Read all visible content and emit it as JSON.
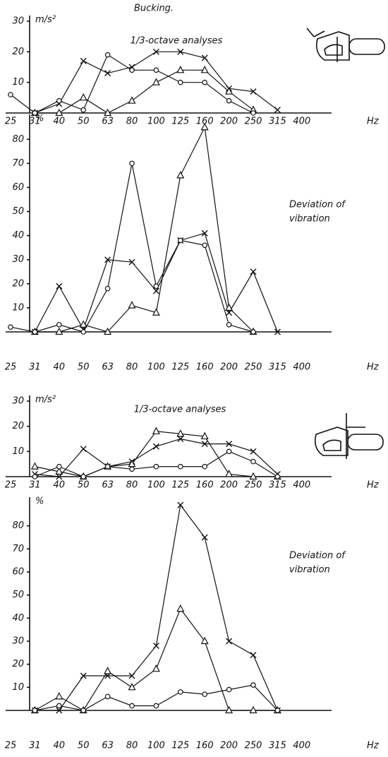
{
  "title": "Bucking.",
  "chart_data": [
    {
      "type": "line",
      "subtitle": "1/3-octave analyses",
      "y_label": "m/s²",
      "x_label": "Hz",
      "categories": [
        "25",
        "31",
        "40",
        "50",
        "63",
        "80",
        "100",
        "125",
        "160",
        "200",
        "250",
        "315",
        "400"
      ],
      "ylim": [
        0,
        30
      ],
      "yticks": [
        10,
        20,
        30
      ],
      "series": [
        {
          "marker": "x",
          "color": "#111",
          "values": [
            null,
            0,
            3,
            17,
            13,
            15,
            20,
            20,
            18,
            8,
            7,
            1,
            null
          ]
        },
        {
          "marker": "triangle",
          "color": "#111",
          "values": [
            null,
            0,
            0,
            5,
            0,
            4,
            10,
            14,
            14,
            7,
            1,
            null,
            null
          ]
        },
        {
          "marker": "circle",
          "color": "#111",
          "values": [
            6,
            0,
            4,
            1,
            19,
            14,
            14,
            10,
            10,
            4,
            0,
            null,
            null
          ]
        }
      ]
    },
    {
      "type": "line",
      "annotation": [
        "Deviation of",
        "vibration"
      ],
      "y_label": "%",
      "x_label": "Hz",
      "categories": [
        "25",
        "31",
        "40",
        "50",
        "63",
        "80",
        "100",
        "125",
        "160",
        "200",
        "250",
        "315",
        "400"
      ],
      "ylim": [
        0,
        88
      ],
      "yticks": [
        10,
        20,
        30,
        40,
        50,
        60,
        70,
        80
      ],
      "series": [
        {
          "marker": "x",
          "color": "#111",
          "values": [
            null,
            0,
            19,
            1,
            30,
            29,
            17,
            38,
            41,
            8,
            25,
            0,
            null
          ]
        },
        {
          "marker": "triangle",
          "color": "#111",
          "values": [
            null,
            0,
            0,
            3,
            0,
            11,
            8,
            65,
            85,
            10,
            0,
            null,
            null
          ]
        },
        {
          "marker": "circle",
          "color": "#111",
          "values": [
            2,
            0,
            3,
            0,
            18,
            70,
            19,
            38,
            36,
            3,
            0,
            null,
            null
          ]
        }
      ]
    },
    {
      "type": "line",
      "subtitle": "1/3-octave analyses",
      "y_label": "m/s²",
      "x_label": "Hz",
      "categories": [
        "25",
        "31",
        "40",
        "50",
        "63",
        "80",
        "100",
        "125",
        "160",
        "200",
        "250",
        "315",
        "400"
      ],
      "ylim": [
        0,
        30
      ],
      "yticks": [
        10,
        20,
        30
      ],
      "series": [
        {
          "marker": "x",
          "color": "#111",
          "values": [
            null,
            1,
            0,
            11,
            4,
            6,
            12,
            15,
            13,
            13,
            10,
            1,
            null
          ]
        },
        {
          "marker": "triangle",
          "color": "#111",
          "values": [
            null,
            4,
            2,
            0,
            4,
            5,
            18,
            17,
            16,
            1,
            0,
            0,
            null
          ]
        },
        {
          "marker": "circle",
          "color": "#111",
          "values": [
            null,
            0,
            4,
            0,
            4,
            3,
            4,
            4,
            4,
            10,
            6,
            0,
            null
          ]
        }
      ]
    },
    {
      "type": "line",
      "annotation": [
        "Deviation of",
        "vibration"
      ],
      "y_label": "%",
      "x_label": "Hz",
      "categories": [
        "25",
        "31",
        "40",
        "50",
        "63",
        "80",
        "100",
        "125",
        "160",
        "200",
        "250",
        "315",
        "400"
      ],
      "ylim": [
        0,
        90
      ],
      "yticks": [
        10,
        20,
        30,
        40,
        50,
        60,
        70,
        80
      ],
      "series": [
        {
          "marker": "x",
          "color": "#111",
          "values": [
            null,
            0,
            0,
            15,
            15,
            15,
            28,
            89,
            75,
            30,
            24,
            0,
            null
          ]
        },
        {
          "marker": "triangle",
          "color": "#111",
          "values": [
            null,
            0,
            6,
            0,
            17,
            10,
            18,
            44,
            30,
            0,
            0,
            0,
            null
          ]
        },
        {
          "marker": "circle",
          "color": "#111",
          "values": [
            null,
            0,
            2,
            0,
            6,
            2,
            2,
            8,
            7,
            9,
            11,
            0,
            null
          ]
        }
      ]
    }
  ]
}
